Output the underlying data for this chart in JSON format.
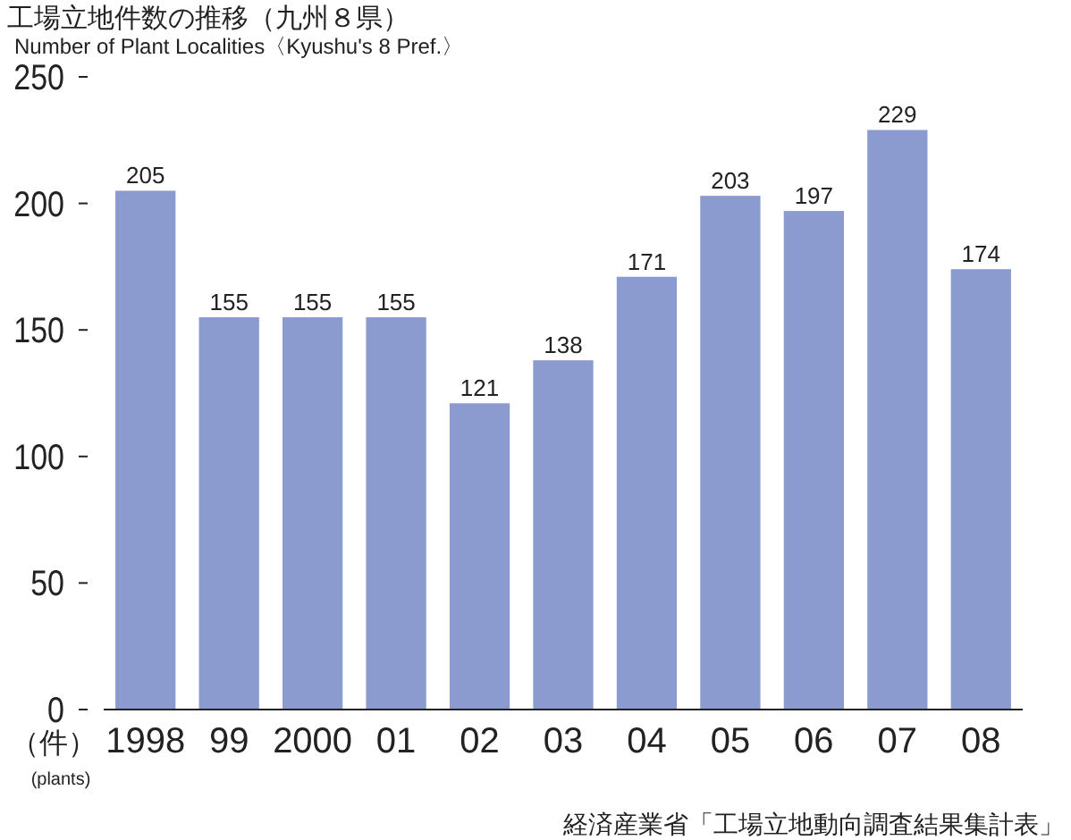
{
  "chart_data": {
    "type": "bar",
    "title": "工場立地件数の推移（九州８県）",
    "subtitle": "Number of Plant Localities〈Kyushu's 8 Pref.〉",
    "ylabel": "（件）\n(plants)",
    "categories": [
      "1998",
      "99",
      "2000",
      "01",
      "02",
      "03",
      "04",
      "05",
      "06",
      "07",
      "08"
    ],
    "values": [
      205,
      155,
      155,
      155,
      121,
      138,
      171,
      203,
      197,
      229,
      174
    ],
    "color": "#8b9bd0",
    "ylim": [
      0,
      250
    ],
    "yticks": [
      0,
      50,
      100,
      150,
      200,
      250
    ],
    "grid": false,
    "data_labels": true,
    "annotations": [
      "経済産業省「工場立地動向調査結果集計表」"
    ]
  }
}
